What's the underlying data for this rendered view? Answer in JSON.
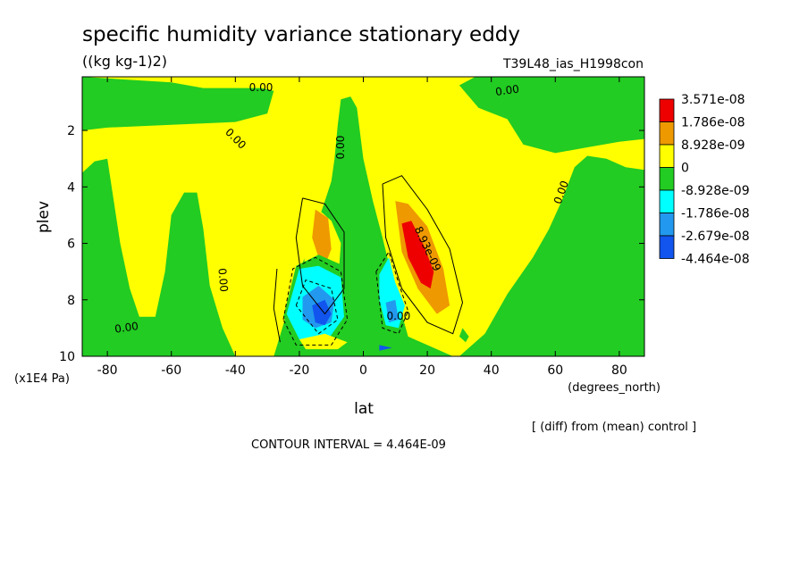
{
  "title": "specific humidity variance stationary eddy",
  "units": "((kg kg-1)2)",
  "experiment": "T39L48_ias_H1998con",
  "footer_note": "[ (diff) from (mean) control ]",
  "contour_interval": "CONTOUR INTERVAL = 4.464E-09",
  "chart_data": {
    "type": "heatmap",
    "xlabel": "lat",
    "xunit": "(degrees_north)",
    "ylabel": "plev",
    "yunit": "(x1E4 Pa)",
    "xlim": [
      -87.86,
      87.86
    ],
    "ylim": [
      10,
      0.1
    ],
    "x_ticks": [
      -80,
      -60,
      -40,
      -20,
      0,
      20,
      40,
      60,
      80
    ],
    "y_ticks": [
      2,
      4,
      6,
      8,
      10
    ],
    "colors": {
      "red": "#ee0000",
      "orange": "#ee9900",
      "yellow": "#ffff00",
      "green": "#22cc22",
      "cyan": "#00ffff",
      "lightblue": "#2299ee",
      "blue": "#1155ee"
    },
    "legend": {
      "placement": "right",
      "swatches": [
        "red",
        "orange",
        "yellow",
        "green",
        "cyan",
        "lightblue",
        "blue"
      ],
      "labels": [
        "3.571e-08",
        "1.786e-08",
        "8.928e-09",
        "0",
        "-8.928e-09",
        "-1.786e-08",
        "-2.679e-08",
        "-4.464e-08"
      ]
    },
    "contour_labels": [
      {
        "text": "0.00",
        "lat": -32,
        "plev": 0.5,
        "angle": 0
      },
      {
        "text": "0.00",
        "lat": -40,
        "plev": 2.3,
        "angle": 45
      },
      {
        "text": "0.00",
        "lat": 45,
        "plev": 0.6,
        "angle": -8
      },
      {
        "text": "0.00",
        "lat": -7,
        "plev": 2.6,
        "angle": -90
      },
      {
        "text": "0.00",
        "lat": 62,
        "plev": 4.2,
        "angle": -70
      },
      {
        "text": "0.00",
        "lat": -44,
        "plev": 7.3,
        "angle": 85
      },
      {
        "text": "0.00",
        "lat": -74,
        "plev": 9.0,
        "angle": -8
      },
      {
        "text": "0.00",
        "lat": 11,
        "plev": 8.6,
        "angle": 0
      },
      {
        "text": "8.93e-09",
        "lat": 20,
        "plev": 6.2,
        "angle": 65
      }
    ],
    "regions": [
      {
        "color": "green",
        "points": [
          [
            -87.86,
            0.1
          ],
          [
            -87.86,
            2.0
          ],
          [
            -80,
            1.9
          ],
          [
            -60,
            1.8
          ],
          [
            -40,
            1.7
          ],
          [
            -30,
            1.4
          ],
          [
            -28,
            0.6
          ],
          [
            -32,
            0.5
          ],
          [
            -50,
            0.5
          ],
          [
            -60,
            0.3
          ],
          [
            -87.86,
            0.1
          ]
        ]
      },
      {
        "color": "green",
        "points": [
          [
            35,
            0.1
          ],
          [
            30,
            0.4
          ],
          [
            36,
            1.2
          ],
          [
            45,
            1.6
          ],
          [
            50,
            2.5
          ],
          [
            60,
            2.8
          ],
          [
            70,
            2.6
          ],
          [
            80,
            2.4
          ],
          [
            87.86,
            2.3
          ],
          [
            87.86,
            0.1
          ]
        ]
      },
      {
        "color": "green",
        "points": [
          [
            -87.86,
            10
          ],
          [
            -87.86,
            3.5
          ],
          [
            -84,
            3.1
          ],
          [
            -80,
            3.0
          ],
          [
            -78,
            4.5
          ],
          [
            -76,
            6.0
          ],
          [
            -73,
            7.6
          ],
          [
            -70,
            8.6
          ],
          [
            -65,
            8.6
          ],
          [
            -62,
            7.0
          ],
          [
            -60,
            5.0
          ],
          [
            -56,
            4.2
          ],
          [
            -52,
            4.2
          ],
          [
            -50,
            5.5
          ],
          [
            -48,
            7.5
          ],
          [
            -44,
            9.0
          ],
          [
            -40,
            10
          ],
          [
            -87.86,
            10
          ]
        ]
      },
      {
        "color": "green",
        "points": [
          [
            -28,
            10
          ],
          [
            -24,
            8.5
          ],
          [
            -20,
            7.0
          ],
          [
            -15,
            5.5
          ],
          [
            -12,
            4.5
          ],
          [
            -10,
            3.8
          ],
          [
            -9,
            3.0
          ],
          [
            -8,
            1.8
          ],
          [
            -7,
            0.9
          ],
          [
            -4,
            0.8
          ],
          [
            -2,
            1.2
          ],
          [
            0,
            3.0
          ],
          [
            3,
            4.5
          ],
          [
            6,
            5.8
          ],
          [
            9,
            7.2
          ],
          [
            12,
            8.5
          ],
          [
            14,
            9.3
          ],
          [
            20,
            9.6
          ],
          [
            28,
            10
          ],
          [
            -28,
            10
          ]
        ]
      },
      {
        "color": "green",
        "points": [
          [
            30,
            10
          ],
          [
            38,
            9.2
          ],
          [
            45,
            7.8
          ],
          [
            53,
            6.5
          ],
          [
            58,
            5.5
          ],
          [
            62,
            4.5
          ],
          [
            66,
            3.3
          ],
          [
            70,
            2.9
          ],
          [
            76,
            3.0
          ],
          [
            82,
            3.3
          ],
          [
            87.86,
            3.4
          ],
          [
            87.86,
            10
          ],
          [
            30,
            10
          ]
        ]
      },
      {
        "color": "yellow",
        "points": [
          [
            -16,
            4.6
          ],
          [
            -10,
            5.2
          ],
          [
            -7,
            6.0
          ],
          [
            -8,
            7.5
          ],
          [
            -13,
            8.1
          ],
          [
            -18,
            7.2
          ],
          [
            -19,
            5.8
          ],
          [
            -16,
            4.6
          ]
        ]
      },
      {
        "color": "orange",
        "points": [
          [
            -15,
            4.8
          ],
          [
            -11,
            5.1
          ],
          [
            -10,
            6.2
          ],
          [
            -12,
            6.8
          ],
          [
            -14,
            6.5
          ],
          [
            -16,
            5.8
          ],
          [
            -15,
            4.8
          ]
        ]
      },
      {
        "color": "yellow",
        "points": [
          [
            8,
            4.2
          ],
          [
            12,
            4.0
          ],
          [
            18,
            5.0
          ],
          [
            25,
            6.4
          ],
          [
            29,
            8.0
          ],
          [
            27,
            8.8
          ],
          [
            21,
            8.4
          ],
          [
            14,
            7.4
          ],
          [
            9,
            5.8
          ],
          [
            8,
            4.2
          ]
        ]
      },
      {
        "color": "orange",
        "points": [
          [
            10,
            4.5
          ],
          [
            14,
            4.6
          ],
          [
            20,
            5.4
          ],
          [
            25,
            6.9
          ],
          [
            27,
            8.2
          ],
          [
            23,
            8.5
          ],
          [
            17,
            7.6
          ],
          [
            12,
            6.3
          ],
          [
            10,
            4.5
          ]
        ]
      },
      {
        "color": "red",
        "points": [
          [
            12,
            5.3
          ],
          [
            15,
            5.2
          ],
          [
            19,
            6.1
          ],
          [
            22,
            7.0
          ],
          [
            21,
            7.6
          ],
          [
            18,
            7.4
          ],
          [
            14,
            6.5
          ],
          [
            12,
            5.3
          ]
        ]
      },
      {
        "color": "green",
        "points": [
          [
            -25,
            8.6
          ],
          [
            -21,
            6.8
          ],
          [
            -14,
            6.4
          ],
          [
            -6,
            6.8
          ],
          [
            -4,
            8.8
          ],
          [
            -9,
            9.7
          ],
          [
            -20,
            9.8
          ],
          [
            -25,
            8.6
          ]
        ]
      },
      {
        "color": "cyan",
        "points": [
          [
            -24,
            8.5
          ],
          [
            -20,
            6.9
          ],
          [
            -14,
            6.8
          ],
          [
            -7,
            7.2
          ],
          [
            -6,
            8.6
          ],
          [
            -11,
            9.4
          ],
          [
            -20,
            9.4
          ],
          [
            -24,
            8.5
          ]
        ]
      },
      {
        "color": "lightblue",
        "points": [
          [
            -19,
            7.9
          ],
          [
            -14,
            7.5
          ],
          [
            -9,
            8.0
          ],
          [
            -10,
            8.8
          ],
          [
            -15,
            9.0
          ],
          [
            -19,
            8.7
          ],
          [
            -19,
            7.9
          ]
        ]
      },
      {
        "color": "blue",
        "points": [
          [
            -16,
            8.2
          ],
          [
            -12,
            8.0
          ],
          [
            -10,
            8.5
          ],
          [
            -12,
            8.9
          ],
          [
            -15,
            8.8
          ],
          [
            -16,
            8.2
          ]
        ]
      },
      {
        "color": "yellow",
        "points": [
          [
            -20,
            9.4
          ],
          [
            -12,
            9.2
          ],
          [
            -5,
            9.5
          ],
          [
            -8,
            9.75
          ],
          [
            -18,
            9.75
          ],
          [
            -20,
            9.4
          ]
        ]
      },
      {
        "color": "cyan",
        "points": [
          [
            5,
            7.1
          ],
          [
            8,
            6.5
          ],
          [
            10,
            7.4
          ],
          [
            13,
            8.2
          ],
          [
            11,
            9.0
          ],
          [
            7,
            8.9
          ],
          [
            5,
            8.0
          ],
          [
            5,
            7.1
          ]
        ]
      },
      {
        "color": "lightblue",
        "points": [
          [
            7,
            8.1
          ],
          [
            10,
            8.0
          ],
          [
            11,
            8.7
          ],
          [
            8,
            8.8
          ],
          [
            7,
            8.1
          ]
        ]
      },
      {
        "color": "green",
        "points": [
          [
            31,
            9.0
          ],
          [
            33,
            9.3
          ],
          [
            32,
            9.5
          ],
          [
            30,
            9.3
          ],
          [
            31,
            9.0
          ]
        ]
      },
      {
        "color": "blue",
        "points": [
          [
            5,
            9.6
          ],
          [
            9,
            9.7
          ],
          [
            5,
            9.8
          ],
          [
            5,
            9.6
          ]
        ]
      },
      {
        "color": "green",
        "points": [
          [
            -56,
            9.2
          ],
          [
            -54,
            9.3
          ],
          [
            -56,
            9.4
          ],
          [
            -58,
            9.3
          ],
          [
            -56,
            9.2
          ]
        ]
      }
    ],
    "contour_lines": [
      {
        "dashed": false,
        "points": [
          [
            -19,
            4.4
          ],
          [
            -12,
            4.6
          ],
          [
            -6,
            5.6
          ],
          [
            -6,
            7.6
          ],
          [
            -12,
            8.5
          ],
          [
            -19,
            7.5
          ],
          [
            -21,
            5.8
          ],
          [
            -19,
            4.4
          ]
        ]
      },
      {
        "dashed": false,
        "points": [
          [
            6,
            3.9
          ],
          [
            12,
            3.6
          ],
          [
            20,
            4.8
          ],
          [
            27,
            6.2
          ],
          [
            31,
            8.1
          ],
          [
            28,
            9.2
          ],
          [
            20,
            8.8
          ],
          [
            12,
            7.6
          ],
          [
            7,
            5.8
          ],
          [
            6,
            3.9
          ]
        ]
      },
      {
        "dashed": false,
        "points": [
          [
            -27,
            6.9
          ],
          [
            -28,
            8.3
          ],
          [
            -26,
            9.5
          ]
        ]
      },
      {
        "dashed": true,
        "points": [
          [
            -25,
            8.7
          ],
          [
            -22,
            6.9
          ],
          [
            -15,
            6.5
          ],
          [
            -7,
            7.0
          ],
          [
            -5,
            8.7
          ],
          [
            -10,
            9.6
          ],
          [
            -21,
            9.6
          ],
          [
            -25,
            8.7
          ]
        ]
      },
      {
        "dashed": true,
        "points": [
          [
            -21,
            8.2
          ],
          [
            -18,
            7.3
          ],
          [
            -10,
            7.6
          ],
          [
            -8,
            8.7
          ],
          [
            -14,
            9.2
          ],
          [
            -21,
            8.2
          ]
        ]
      },
      {
        "dashed": true,
        "points": [
          [
            4,
            7.0
          ],
          [
            8,
            6.3
          ],
          [
            11,
            7.4
          ],
          [
            14,
            8.4
          ],
          [
            11,
            9.2
          ],
          [
            6,
            9.0
          ],
          [
            4,
            7.0
          ]
        ]
      }
    ]
  }
}
